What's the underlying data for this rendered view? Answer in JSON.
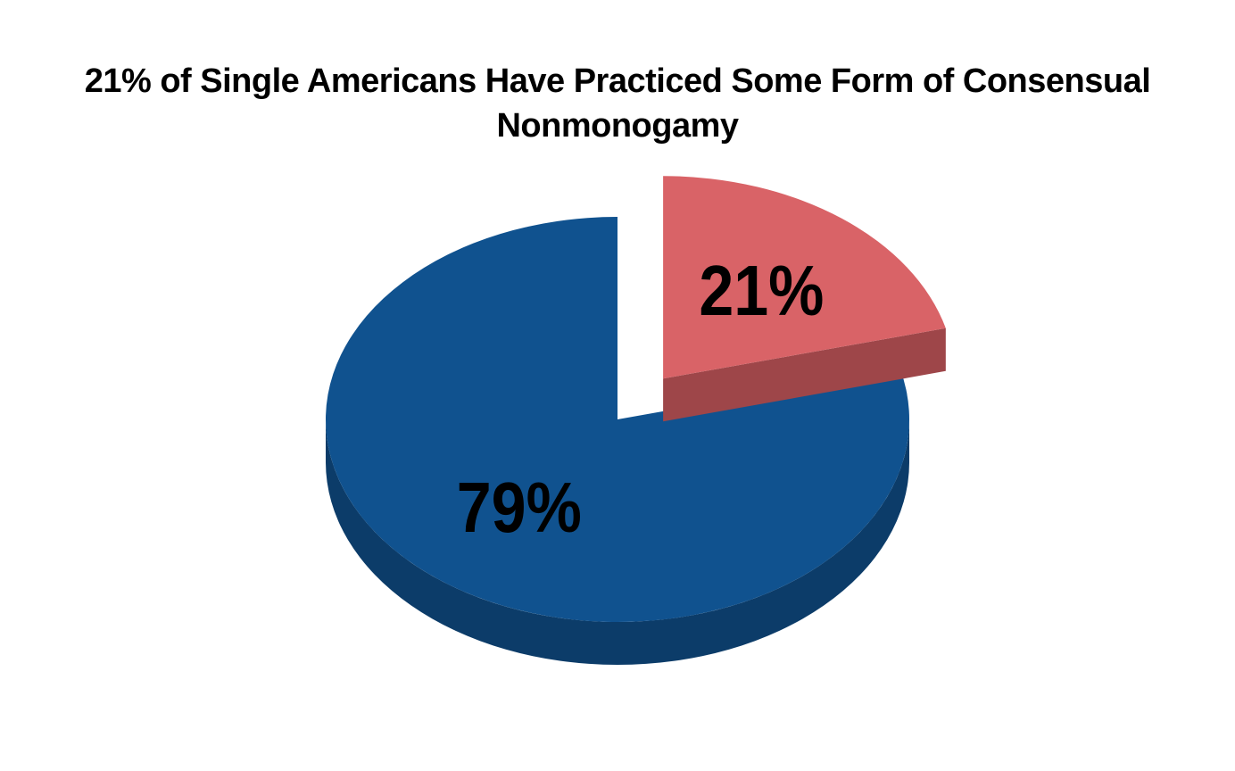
{
  "page": {
    "background": "#FFFFFF"
  },
  "chart_data": {
    "type": "pie",
    "style": "3d-exploded",
    "title": "21% of Single Americans Have Practiced Some Form of Consensual Nonmonogamy",
    "title_lines": [
      "21% of Single Americans Have Practiced Some Form of Consensual",
      "Nonmonogamy"
    ],
    "title_color": "#000000",
    "start_angle_deg": 0,
    "direction": "clockwise",
    "legend": "none",
    "background": "#FFFFFF",
    "label_color": "#000000",
    "slices": [
      {
        "label": "21%",
        "value": 21,
        "color": "#D96367",
        "side_color": "#9E4649",
        "exploded": true
      },
      {
        "label": "79%",
        "value": 79,
        "color": "#10528F",
        "side_color": "#0C3C69",
        "exploded": false
      }
    ]
  }
}
